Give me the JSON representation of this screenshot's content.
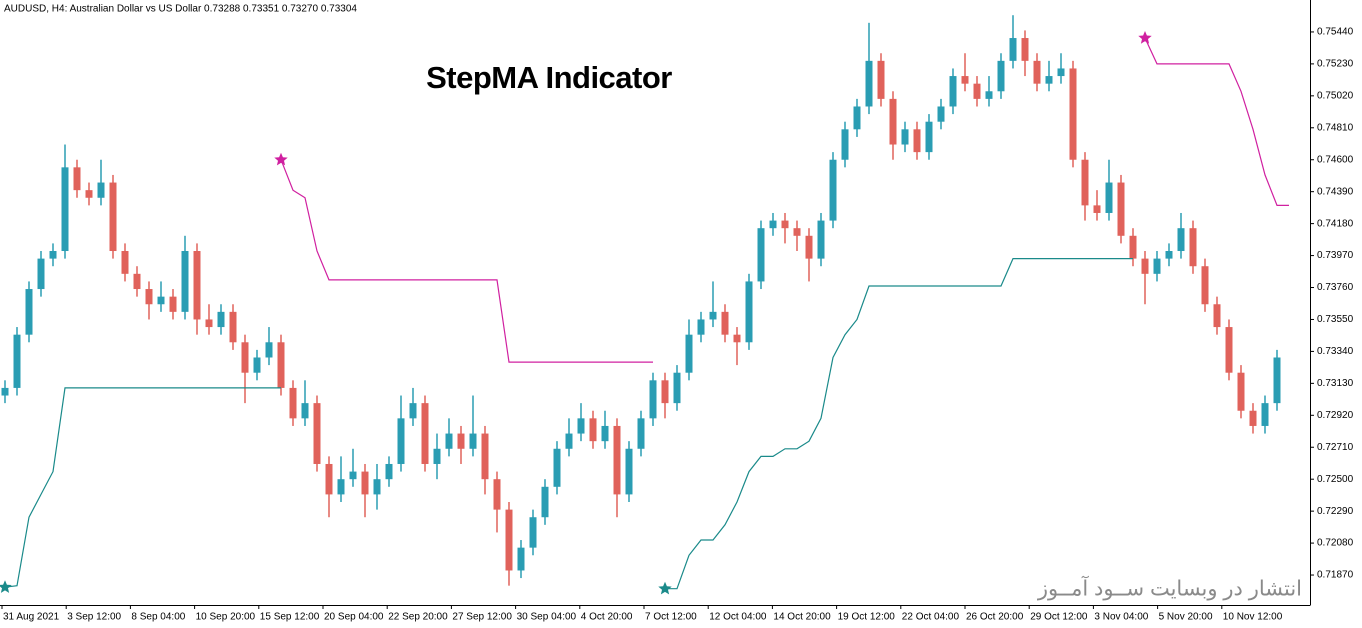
{
  "chart_data": {
    "type": "candlestick",
    "header": "AUDUSD, H4:  Australian Dollar vs US Dollar  0.73288 0.73351 0.73270 0.73304",
    "title": "StepMA Indicator",
    "watermark": "انتشار در وبسایت  ســود آمــوز",
    "up_color": "#2a9db3",
    "down_color": "#e0625b",
    "ylim": [
      0.71673,
      0.7565
    ],
    "yticks": [
      {
        "value": 0.7544,
        "label": "0.75440"
      },
      {
        "value": 0.7523,
        "label": "0.75230"
      },
      {
        "value": 0.7502,
        "label": "0.75020"
      },
      {
        "value": 0.7481,
        "label": "0.74810"
      },
      {
        "value": 0.746,
        "label": "0.74600"
      },
      {
        "value": 0.7439,
        "label": "0.74390"
      },
      {
        "value": 0.7418,
        "label": "0.74180"
      },
      {
        "value": 0.7397,
        "label": "0.73970"
      },
      {
        "value": 0.7376,
        "label": "0.73760"
      },
      {
        "value": 0.7355,
        "label": "0.73550"
      },
      {
        "value": 0.7334,
        "label": "0.73340"
      },
      {
        "value": 0.7313,
        "label": "0.73130"
      },
      {
        "value": 0.7292,
        "label": "0.72920"
      },
      {
        "value": 0.7271,
        "label": "0.72710"
      },
      {
        "value": 0.725,
        "label": "0.72500"
      },
      {
        "value": 0.7229,
        "label": "0.72290"
      },
      {
        "value": 0.7208,
        "label": "0.72080"
      },
      {
        "value": 0.7187,
        "label": "0.71870"
      }
    ],
    "x_labels": [
      "31 Aug 2021",
      "3 Sep 12:00",
      "8 Sep 04:00",
      "10 Sep 20:00",
      "15 Sep 12:00",
      "20 Sep 04:00",
      "22 Sep 20:00",
      "27 Sep 12:00",
      "30 Sep 04:00",
      "4 Oct 20:00",
      "7 Oct 12:00",
      "12 Oct 04:00",
      "14 Oct 20:00",
      "19 Oct 12:00",
      "22 Oct 04:00",
      "26 Oct 20:00",
      "29 Oct 12:00",
      "3 Nov 04:00",
      "5 Nov 20:00",
      "10 Nov 12:00"
    ],
    "ohlc": [
      [
        0.7305,
        0.7315,
        0.73,
        0.731
      ],
      [
        0.731,
        0.735,
        0.7305,
        0.7345
      ],
      [
        0.7345,
        0.738,
        0.734,
        0.7375
      ],
      [
        0.7375,
        0.74,
        0.737,
        0.7395
      ],
      [
        0.7395,
        0.7405,
        0.739,
        0.74
      ],
      [
        0.74,
        0.747,
        0.7395,
        0.7455
      ],
      [
        0.7455,
        0.746,
        0.7435,
        0.744
      ],
      [
        0.744,
        0.7445,
        0.743,
        0.7435
      ],
      [
        0.7435,
        0.746,
        0.743,
        0.7445
      ],
      [
        0.7445,
        0.745,
        0.7395,
        0.74
      ],
      [
        0.74,
        0.7405,
        0.738,
        0.7385
      ],
      [
        0.7385,
        0.739,
        0.737,
        0.7375
      ],
      [
        0.7375,
        0.738,
        0.7355,
        0.7365
      ],
      [
        0.7365,
        0.738,
        0.736,
        0.737
      ],
      [
        0.737,
        0.7375,
        0.7355,
        0.736
      ],
      [
        0.736,
        0.741,
        0.7355,
        0.74
      ],
      [
        0.74,
        0.7405,
        0.7345,
        0.7355
      ],
      [
        0.7355,
        0.7365,
        0.7345,
        0.735
      ],
      [
        0.735,
        0.7365,
        0.7345,
        0.736
      ],
      [
        0.736,
        0.7365,
        0.7335,
        0.734
      ],
      [
        0.734,
        0.7345,
        0.73,
        0.732
      ],
      [
        0.732,
        0.7335,
        0.7315,
        0.733
      ],
      [
        0.733,
        0.735,
        0.7325,
        0.734
      ],
      [
        0.734,
        0.7345,
        0.7305,
        0.731
      ],
      [
        0.731,
        0.7315,
        0.7285,
        0.729
      ],
      [
        0.729,
        0.7315,
        0.7285,
        0.73
      ],
      [
        0.73,
        0.7305,
        0.7255,
        0.726
      ],
      [
        0.726,
        0.7265,
        0.7225,
        0.724
      ],
      [
        0.724,
        0.7265,
        0.7235,
        0.725
      ],
      [
        0.725,
        0.727,
        0.7245,
        0.7255
      ],
      [
        0.7255,
        0.726,
        0.7225,
        0.724
      ],
      [
        0.724,
        0.726,
        0.723,
        0.725
      ],
      [
        0.725,
        0.7265,
        0.7245,
        0.726
      ],
      [
        0.726,
        0.7305,
        0.7255,
        0.729
      ],
      [
        0.729,
        0.731,
        0.7285,
        0.73
      ],
      [
        0.73,
        0.7305,
        0.7255,
        0.726
      ],
      [
        0.726,
        0.728,
        0.725,
        0.727
      ],
      [
        0.727,
        0.729,
        0.7265,
        0.728
      ],
      [
        0.728,
        0.7285,
        0.726,
        0.727
      ],
      [
        0.727,
        0.7305,
        0.7265,
        0.728
      ],
      [
        0.728,
        0.7285,
        0.724,
        0.725
      ],
      [
        0.725,
        0.7255,
        0.7215,
        0.723
      ],
      [
        0.723,
        0.7235,
        0.718,
        0.719
      ],
      [
        0.719,
        0.721,
        0.7185,
        0.7205
      ],
      [
        0.7205,
        0.723,
        0.72,
        0.7225
      ],
      [
        0.7225,
        0.725,
        0.722,
        0.7245
      ],
      [
        0.7245,
        0.7275,
        0.724,
        0.727
      ],
      [
        0.727,
        0.729,
        0.7265,
        0.728
      ],
      [
        0.728,
        0.73,
        0.7275,
        0.729
      ],
      [
        0.729,
        0.7295,
        0.727,
        0.7275
      ],
      [
        0.7275,
        0.7295,
        0.727,
        0.7285
      ],
      [
        0.7285,
        0.729,
        0.7225,
        0.724
      ],
      [
        0.724,
        0.7275,
        0.7235,
        0.727
      ],
      [
        0.727,
        0.7295,
        0.7265,
        0.729
      ],
      [
        0.729,
        0.732,
        0.7285,
        0.7315
      ],
      [
        0.7315,
        0.732,
        0.729,
        0.73
      ],
      [
        0.73,
        0.7325,
        0.7295,
        0.732
      ],
      [
        0.732,
        0.7355,
        0.7315,
        0.7345
      ],
      [
        0.7345,
        0.736,
        0.734,
        0.7355
      ],
      [
        0.7355,
        0.738,
        0.735,
        0.736
      ],
      [
        0.736,
        0.7365,
        0.734,
        0.7345
      ],
      [
        0.7345,
        0.735,
        0.7325,
        0.734
      ],
      [
        0.734,
        0.7385,
        0.7335,
        0.738
      ],
      [
        0.738,
        0.742,
        0.7375,
        0.7415
      ],
      [
        0.7415,
        0.7425,
        0.741,
        0.742
      ],
      [
        0.742,
        0.7425,
        0.7405,
        0.7415
      ],
      [
        0.7415,
        0.742,
        0.74,
        0.741
      ],
      [
        0.741,
        0.7415,
        0.738,
        0.7395
      ],
      [
        0.7395,
        0.7425,
        0.739,
        0.742
      ],
      [
        0.742,
        0.7465,
        0.7415,
        0.746
      ],
      [
        0.746,
        0.7485,
        0.7455,
        0.748
      ],
      [
        0.748,
        0.75,
        0.7475,
        0.7495
      ],
      [
        0.7495,
        0.755,
        0.749,
        0.7525
      ],
      [
        0.7525,
        0.753,
        0.7495,
        0.75
      ],
      [
        0.75,
        0.7505,
        0.746,
        0.747
      ],
      [
        0.747,
        0.7485,
        0.7465,
        0.748
      ],
      [
        0.748,
        0.7485,
        0.746,
        0.7465
      ],
      [
        0.7465,
        0.749,
        0.746,
        0.7485
      ],
      [
        0.7485,
        0.75,
        0.748,
        0.7495
      ],
      [
        0.7495,
        0.752,
        0.749,
        0.7515
      ],
      [
        0.7515,
        0.753,
        0.7505,
        0.751
      ],
      [
        0.751,
        0.7515,
        0.7495,
        0.75
      ],
      [
        0.75,
        0.7515,
        0.7495,
        0.7505
      ],
      [
        0.7505,
        0.753,
        0.75,
        0.7525
      ],
      [
        0.7525,
        0.7555,
        0.752,
        0.754
      ],
      [
        0.754,
        0.7545,
        0.7515,
        0.7525
      ],
      [
        0.7525,
        0.753,
        0.7505,
        0.751
      ],
      [
        0.751,
        0.7525,
        0.7505,
        0.7515
      ],
      [
        0.7515,
        0.753,
        0.751,
        0.752
      ],
      [
        0.752,
        0.7525,
        0.7455,
        0.746
      ],
      [
        0.746,
        0.7465,
        0.742,
        0.743
      ],
      [
        0.743,
        0.744,
        0.742,
        0.7425
      ],
      [
        0.7425,
        0.746,
        0.742,
        0.7445
      ],
      [
        0.7445,
        0.745,
        0.7405,
        0.741
      ],
      [
        0.741,
        0.7415,
        0.739,
        0.7395
      ],
      [
        0.7395,
        0.74,
        0.7365,
        0.7385
      ],
      [
        0.7385,
        0.74,
        0.738,
        0.7395
      ],
      [
        0.7395,
        0.7405,
        0.739,
        0.74
      ],
      [
        0.74,
        0.7425,
        0.7395,
        0.7415
      ],
      [
        0.7415,
        0.742,
        0.7385,
        0.739
      ],
      [
        0.739,
        0.7395,
        0.736,
        0.7365
      ],
      [
        0.7365,
        0.737,
        0.7345,
        0.735
      ],
      [
        0.735,
        0.7355,
        0.7315,
        0.732
      ],
      [
        0.732,
        0.7325,
        0.729,
        0.7295
      ],
      [
        0.7295,
        0.73,
        0.728,
        0.7285
      ],
      [
        0.7285,
        0.7305,
        0.728,
        0.73
      ],
      [
        0.73,
        0.7335,
        0.7295,
        0.733
      ]
    ],
    "series": [
      {
        "color": "#1a8a8a",
        "values": [
          0.7179,
          0.718,
          0.7225,
          0.724,
          0.7255,
          0.731,
          0.731,
          0.731,
          0.731,
          0.731,
          0.731,
          0.731,
          0.731,
          0.731,
          0.731,
          0.731,
          0.731,
          0.731,
          0.731,
          0.731,
          0.731,
          0.731,
          0.731,
          0.731,
          null,
          null,
          null,
          null,
          null,
          null,
          null,
          null,
          null,
          null,
          null,
          null,
          null,
          null,
          null,
          null,
          null,
          null,
          null,
          null,
          null,
          null,
          null,
          null,
          null,
          null,
          null,
          null,
          null,
          null,
          null,
          0.7178,
          0.7178,
          0.72,
          0.721,
          0.721,
          0.722,
          0.7235,
          0.7255,
          0.7265,
          0.7265,
          0.727,
          0.727,
          0.7275,
          0.729,
          0.733,
          0.7345,
          0.7355,
          0.7377,
          0.7377,
          0.7377,
          0.7377,
          0.7377,
          0.7377,
          0.7377,
          0.7377,
          0.7377,
          0.7377,
          0.7377,
          0.7377,
          0.7395,
          0.7395,
          0.7395,
          0.7395,
          0.7395,
          0.7395,
          0.7395,
          0.7395,
          0.7395,
          0.7395,
          0.7395,
          null,
          null,
          null,
          null,
          null,
          null,
          null,
          null,
          null,
          null,
          null,
          null
        ]
      },
      {
        "color": "#d020a0",
        "values": [
          null,
          null,
          null,
          null,
          null,
          null,
          null,
          null,
          null,
          null,
          null,
          null,
          null,
          null,
          null,
          null,
          null,
          null,
          null,
          null,
          null,
          null,
          null,
          0.746,
          0.744,
          0.7435,
          0.74,
          0.7381,
          0.7381,
          0.7381,
          0.7381,
          0.7381,
          0.7381,
          0.7381,
          0.7381,
          0.7381,
          0.7381,
          0.7381,
          0.7381,
          0.7381,
          0.7381,
          0.7381,
          0.7327,
          0.7327,
          0.7327,
          0.7327,
          0.7327,
          0.7327,
          0.7327,
          0.7327,
          0.7327,
          0.7327,
          0.7327,
          0.7327,
          0.7327,
          null,
          null,
          null,
          null,
          null,
          null,
          null,
          null,
          null,
          null,
          null,
          null,
          null,
          null,
          null,
          null,
          null,
          null,
          null,
          null,
          null,
          null,
          null,
          null,
          null,
          null,
          null,
          null,
          null,
          null,
          null,
          null,
          null,
          null,
          null,
          null,
          null,
          null,
          null,
          null,
          0.754,
          0.7523,
          0.7523,
          0.7523,
          0.7523,
          0.7523,
          0.7523,
          0.7523,
          0.7505,
          0.748,
          0.745,
          0.743,
          0.743
        ]
      }
    ]
  }
}
